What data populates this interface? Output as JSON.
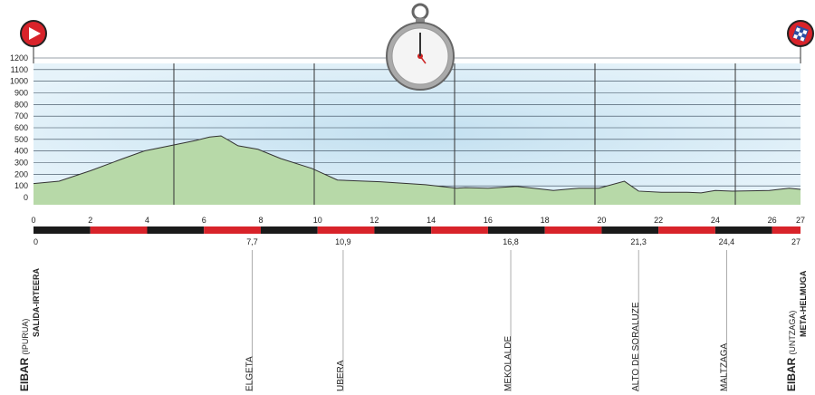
{
  "chart_data": {
    "type": "profile",
    "x": [
      0,
      0.9,
      2.0,
      3.1,
      3.9,
      4.9,
      5.7,
      6.2,
      6.6,
      7.2,
      7.9,
      8.7,
      9.8,
      10.7,
      12.2,
      13.8,
      14.9,
      15.2,
      16.0,
      17.0,
      17.6,
      18.3,
      19.2,
      19.9,
      20.8,
      21.3,
      22.1,
      23.0,
      23.5,
      24.0,
      24.6,
      25.9,
      26.6,
      27
    ],
    "values": [
      120,
      140,
      230,
      330,
      400,
      450,
      490,
      520,
      530,
      445,
      415,
      335,
      250,
      150,
      135,
      110,
      80,
      85,
      80,
      95,
      80,
      60,
      80,
      80,
      140,
      55,
      45,
      45,
      40,
      60,
      55,
      60,
      80,
      70
    ],
    "color": "#b7d9a8",
    "xlim": [
      0,
      27
    ],
    "xticks": [
      0,
      2,
      4,
      6,
      8,
      10,
      12,
      14,
      16,
      18,
      20,
      22,
      24,
      26,
      27
    ],
    "ylim": [
      0,
      1200
    ],
    "yticks": [
      0,
      100,
      200,
      300,
      400,
      500,
      600,
      700,
      800,
      900,
      1000,
      1100,
      1200
    ],
    "grid": true,
    "waypoints": [
      {
        "km": 0,
        "name": "EIBAR",
        "detail": "(IPURUA)",
        "note": "SALIDA-IRTEERA"
      },
      {
        "km": {
          "value": 7.7,
          "label": "7,7"
        },
        "name": "ELGETA"
      },
      {
        "km": {
          "value": 10.9,
          "label": "10,9"
        },
        "name": "UBERA"
      },
      {
        "km": {
          "value": 16.8,
          "label": "16,8"
        },
        "name": "MEKOLALDE"
      },
      {
        "km": {
          "value": 21.3,
          "label": "21,3"
        },
        "name": "ALTO DE SORALUZE"
      },
      {
        "km": {
          "value": 24.4,
          "label": "24,4"
        },
        "name": "MALTZAGA"
      },
      {
        "km": 27,
        "name": "EIBAR",
        "detail": "(UNTZAGA)",
        "note": "META-HELMUGA"
      }
    ]
  }
}
